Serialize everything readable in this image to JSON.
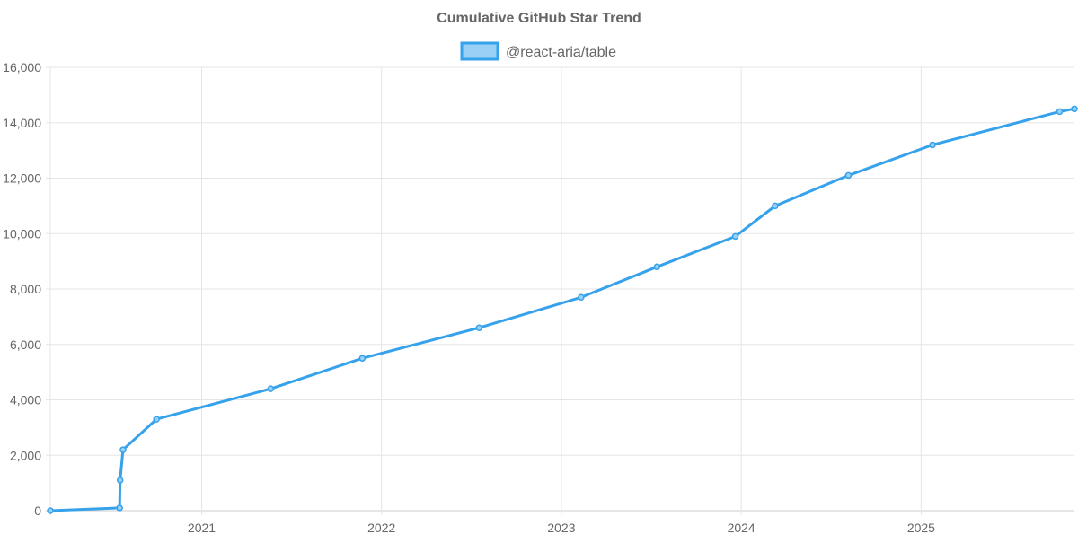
{
  "chart_data": {
    "type": "line",
    "title": "Cumulative GitHub Star Trend",
    "legend": {
      "position": "top",
      "entries": [
        "@react-aria/table"
      ]
    },
    "colors": {
      "line": "#36a2eb",
      "fill": "#9ad0f5",
      "grid": "#e5e5e5",
      "text": "#666666"
    },
    "grid": true,
    "xlim": [
      "2020-02-28",
      "2025-11-08"
    ],
    "ylim": [
      0,
      16000
    ],
    "x_ticks": [
      "2021",
      "2022",
      "2023",
      "2024",
      "2025"
    ],
    "y_ticks": [
      "0",
      "2,000",
      "4,000",
      "6,000",
      "8,000",
      "10,000",
      "12,000",
      "14,000",
      "16,000"
    ],
    "series": [
      {
        "name": "@react-aria/table",
        "x": [
          "2020-02-28",
          "2020-07-18",
          "2020-07-19",
          "2020-07-25",
          "2020-10-01",
          "2021-05-21",
          "2021-11-23",
          "2022-07-18",
          "2023-02-10",
          "2023-07-14",
          "2023-12-20",
          "2024-03-10",
          "2024-08-06",
          "2025-01-24",
          "2025-10-09",
          "2025-11-08"
        ],
        "y": [
          0,
          100,
          1100,
          2200,
          3300,
          4400,
          5500,
          6600,
          7700,
          8800,
          9900,
          11000,
          12100,
          13200,
          14400,
          14500
        ]
      }
    ]
  }
}
